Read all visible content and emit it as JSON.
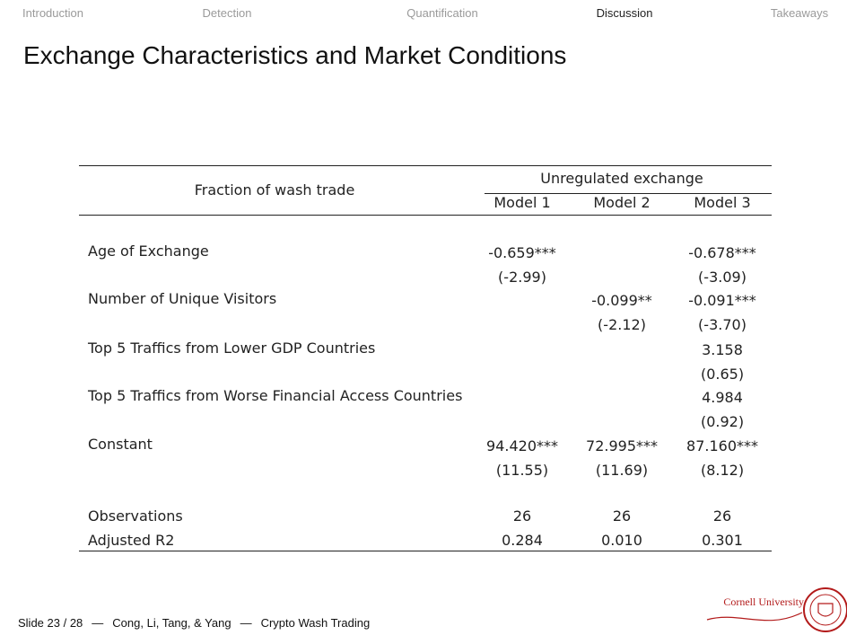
{
  "nav": [
    "Introduction",
    "Detection",
    "Quantification",
    "Discussion",
    "Takeaways"
  ],
  "title": "Exchange Characteristics and Market Conditions",
  "table": {
    "stub": "Fraction of wash trade",
    "group": "Unregulated exchange",
    "models": [
      "Model 1",
      "Model 2",
      "Model 3"
    ],
    "rows": [
      {
        "label": "Age of Exchange",
        "cells": [
          [
            "-0.659***",
            "(-2.99)"
          ],
          null,
          [
            "-0.678***",
            "(-3.09)"
          ]
        ]
      },
      {
        "label": "Number of Unique Visitors",
        "cells": [
          null,
          [
            "-0.099**",
            "(-2.12)"
          ],
          [
            "-0.091***",
            "(-3.70)"
          ]
        ]
      },
      {
        "label": "Top 5 Traffics from Lower GDP Countries",
        "cells": [
          null,
          null,
          [
            "3.158",
            "(0.65)"
          ]
        ]
      },
      {
        "label": "Top 5 Traffics from Worse Financial Access Countries",
        "cells": [
          null,
          null,
          [
            "4.984",
            "(0.92)"
          ]
        ]
      },
      {
        "label": "Constant",
        "cells": [
          [
            "94.420***",
            "(11.55)"
          ],
          [
            "72.995***",
            "(11.69)"
          ],
          [
            "87.160***",
            "(8.12)"
          ]
        ]
      }
    ],
    "stats": [
      {
        "label": "Observations",
        "cells": [
          "26",
          "26",
          "26"
        ]
      },
      {
        "label": "Adjusted R2",
        "cells": [
          "0.284",
          "0.010",
          "0.301"
        ]
      }
    ]
  },
  "footer": {
    "parts": [
      "Slide 23 / 28",
      "—",
      "Cong, Li, Tang, & Yang",
      "—",
      "Crypto Wash Trading"
    ],
    "logo": "Cornell University"
  }
}
